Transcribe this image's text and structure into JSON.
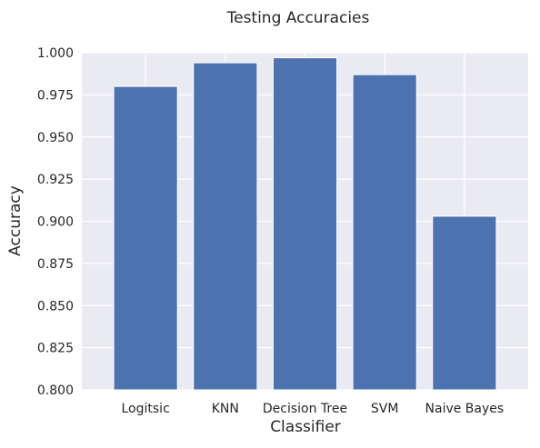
{
  "chart_data": {
    "type": "bar",
    "title": "Testing Accuracies",
    "xlabel": "Classifier",
    "ylabel": "Accuracy",
    "categories": [
      "Logitsic",
      "KNN",
      "Decision Tree",
      "SVM",
      "Naive Bayes"
    ],
    "values": [
      0.98,
      0.994,
      0.997,
      0.987,
      0.903
    ],
    "ylim": [
      0.8,
      1.0
    ],
    "yticks": [
      0.8,
      0.825,
      0.85,
      0.875,
      0.9,
      0.925,
      0.95,
      0.975,
      1.0
    ],
    "ytick_labels": [
      "0.800",
      "0.825",
      "0.850",
      "0.875",
      "0.900",
      "0.925",
      "0.950",
      "0.975",
      "1.000"
    ],
    "grid": true,
    "colors": {
      "bar": "#4c72b0",
      "plot_background": "#eaeaf2",
      "grid": "#ffffff",
      "text": "#262626"
    }
  }
}
